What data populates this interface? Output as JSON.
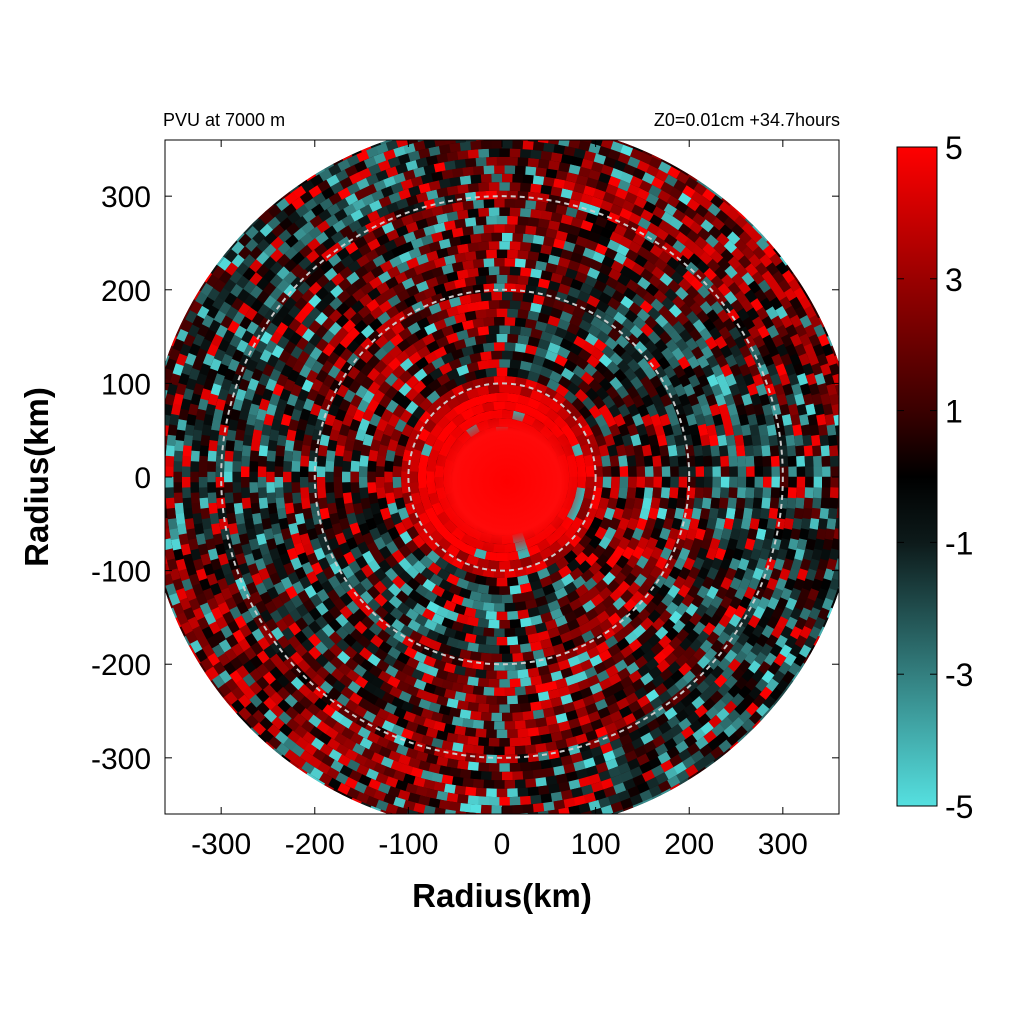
{
  "chart_data": {
    "type": "heatmap",
    "title_left": "PVU at  7000 m",
    "title_right": "Z0=0.01cm  +34.7hours",
    "xlabel": "Radius(km)",
    "ylabel": "Radius(km)",
    "xlim": [
      -360,
      360
    ],
    "ylim": [
      -360,
      360
    ],
    "xticks": [
      "-300",
      "-200",
      "-100",
      "0",
      "100",
      "200",
      "300"
    ],
    "xtick_values": [
      -300,
      -200,
      -100,
      0,
      100,
      200,
      300
    ],
    "yticks": [
      "300",
      "200",
      "100",
      "0",
      "-100",
      "-200",
      "-300"
    ],
    "ytick_values": [
      300,
      200,
      100,
      0,
      -100,
      -200,
      -300
    ],
    "range_rings_km": [
      100,
      200,
      300
    ],
    "data_domain_radius_km": 380,
    "colorbar": {
      "range": [
        -5,
        5
      ],
      "ticks": [
        "5",
        "3",
        "1",
        "-1",
        "-3",
        "-5"
      ],
      "tick_values": [
        5,
        3,
        1,
        -1,
        -3,
        -5
      ],
      "colors": {
        "min": "#55e0e0",
        "mid": "#000000",
        "max": "#ff0000"
      }
    }
  }
}
